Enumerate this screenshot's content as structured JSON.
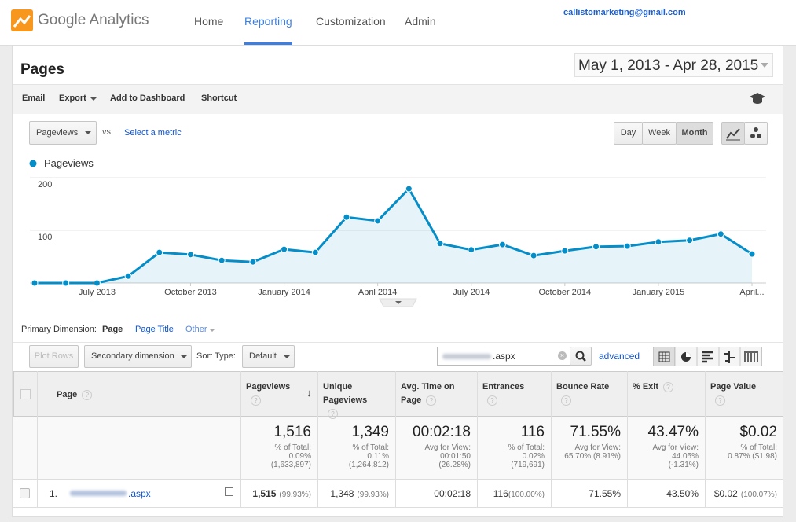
{
  "header": {
    "logo": "Google Analytics",
    "nav": [
      "Home",
      "Reporting",
      "Customization",
      "Admin"
    ],
    "account": "callistomarketing@gmail.com"
  },
  "page_title": "Pages",
  "date_range": "May 1, 2013 - Apr 28, 2015",
  "toolbar": [
    "Email",
    "Export",
    "Add to Dashboard",
    "Shortcut"
  ],
  "chart_controls": {
    "metric": "Pageviews",
    "vs": "vs.",
    "select_metric": "Select a metric",
    "intervals": [
      "Day",
      "Week",
      "Month"
    ]
  },
  "chart_data": {
    "type": "line",
    "categories": [
      null,
      null,
      "July 2013",
      null,
      null,
      "October 2013",
      null,
      null,
      "January 2014",
      null,
      null,
      "April 2014",
      null,
      null,
      "July 2014",
      null,
      null,
      "October 2014",
      null,
      null,
      "January 2015",
      null,
      null,
      "April..."
    ],
    "series": [
      {
        "name": "Pageviews",
        "color": "#058dc7",
        "values": [
          0,
          0,
          0,
          13,
          58,
          54,
          43,
          40,
          64,
          58,
          125,
          118,
          179,
          75,
          63,
          73,
          52,
          61,
          69,
          70,
          78,
          81,
          93,
          55
        ]
      }
    ],
    "ylim": [
      0,
      200
    ],
    "yticks": [
      100,
      200
    ],
    "grid": true
  },
  "dimensions": {
    "label": "Primary Dimension:",
    "options": [
      "Page",
      "Page Title",
      "Other"
    ]
  },
  "table_controls": {
    "plot_rows": "Plot Rows",
    "secondary": "Secondary dimension",
    "sort_label": "Sort Type:",
    "sort_value": "Default",
    "search": ".aspx",
    "advanced": "advanced"
  },
  "table": {
    "columns": [
      "Page",
      "Pageviews",
      "Unique Pageviews",
      "Avg. Time on Page",
      "Entrances",
      "Bounce Rate",
      "% Exit",
      "Page Value"
    ],
    "totals": [
      {
        "value": "1,516",
        "lines": [
          "% of Total:",
          "0.09%",
          "(1,633,897)"
        ]
      },
      {
        "value": "1,349",
        "lines": [
          "% of Total:",
          "0.11%",
          "(1,264,812)"
        ]
      },
      {
        "value": "00:02:18",
        "lines": [
          "Avg for View:",
          "00:01:50",
          "(26.28%)"
        ]
      },
      {
        "value": "116",
        "lines": [
          "% of Total:",
          "0.02%",
          "(719,691)"
        ]
      },
      {
        "value": "71.55%",
        "lines": [
          "Avg for View:",
          "65.70% (8.91%)"
        ]
      },
      {
        "value": "43.47%",
        "lines": [
          "Avg for View:",
          "44.05%",
          "(-1.31%)"
        ]
      },
      {
        "value": "$0.02",
        "lines": [
          "% of Total:",
          "0.87% ($1.98)"
        ]
      }
    ],
    "rows": [
      {
        "index": "1.",
        "page": ".aspx",
        "cells": [
          {
            "value": "1,515",
            "share": "(99.93%)"
          },
          {
            "value": "1,348",
            "share": "(99.93%)"
          },
          {
            "value": "00:02:18"
          },
          {
            "value": "116",
            "share": "(100.00%)"
          },
          {
            "value": "71.55%"
          },
          {
            "value": "43.50%"
          },
          {
            "value": "$0.02",
            "share": "(100.07%)"
          }
        ]
      }
    ]
  }
}
